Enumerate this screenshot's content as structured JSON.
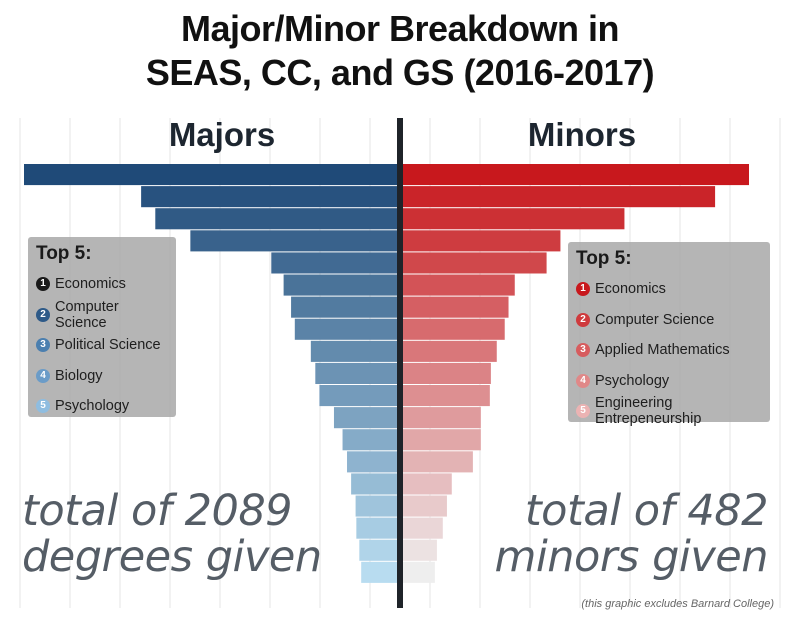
{
  "title_line1": "Major/Minor Breakdown in",
  "title_line2": "SEAS, CC, and GS (2016-2017)",
  "chart_data": {
    "type": "bar",
    "title": "Major/Minor Breakdown in SEAS, CC, and GS (2016-2017)",
    "xlabel": "",
    "ylabel": "",
    "grid": true,
    "series": [
      {
        "name": "Majors",
        "relative_values": [
          1.0,
          0.686,
          0.648,
          0.554,
          0.337,
          0.304,
          0.284,
          0.274,
          0.231,
          0.219,
          0.208,
          0.169,
          0.146,
          0.134,
          0.123,
          0.111,
          0.109,
          0.101,
          0.096
        ]
      },
      {
        "name": "Minors",
        "relative_values": [
          1.0,
          0.902,
          0.64,
          0.455,
          0.415,
          0.323,
          0.305,
          0.294,
          0.271,
          0.254,
          0.251,
          0.225,
          0.225,
          0.202,
          0.141,
          0.127,
          0.115,
          0.098,
          0.092
        ]
      }
    ],
    "colors": {
      "majors_dark": "#1f4a78",
      "majors_light": "#b8dcf0",
      "minors_dark": "#c8181d",
      "minors_light": "#eeeeee",
      "divider": "#1f2329",
      "grid": "#e4e4e4"
    }
  },
  "majors": {
    "label": "Majors",
    "top5_title": "Top 5:",
    "top5": [
      {
        "rank": "1",
        "name": "Economics"
      },
      {
        "rank": "2",
        "name": "Computer Science"
      },
      {
        "rank": "3",
        "name": "Political Science"
      },
      {
        "rank": "4",
        "name": "Biology"
      },
      {
        "rank": "5",
        "name": "Psychology"
      }
    ],
    "rank_colors": [
      "#1a1a1a",
      "#2e5a88",
      "#4b7faf",
      "#6b9cc8",
      "#8fbde0"
    ],
    "total_line1": "total of 2089",
    "total_line2": "degrees given"
  },
  "minors": {
    "label": "Minors",
    "top5_title": "Top 5:",
    "top5": [
      {
        "rank": "1",
        "name": "Economics"
      },
      {
        "rank": "2",
        "name": "Computer Science"
      },
      {
        "rank": "3",
        "name": "Applied Mathematics"
      },
      {
        "rank": "4",
        "name": "Psychology"
      },
      {
        "rank": "5",
        "name": "Engineering Entrepeneurship"
      }
    ],
    "rank_colors": [
      "#c8181d",
      "#cf3a3d",
      "#d75c5e",
      "#e08888",
      "#ebb3b3"
    ],
    "total_line1": "total of 482",
    "total_line2": "minors given"
  },
  "footnote": "(this graphic excludes Barnard College)"
}
